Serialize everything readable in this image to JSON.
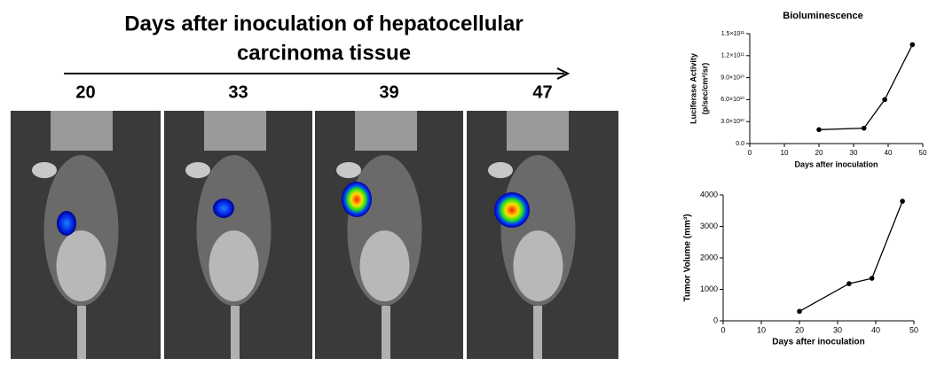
{
  "figure": {
    "title": [
      "Days after inoculation of hepatocellular",
      "carcinoma tissue"
    ],
    "days": [
      "20",
      "33",
      "39",
      "47"
    ]
  },
  "chart_data": [
    {
      "type": "line",
      "title": "Bioluminescence",
      "xlabel": "Days after inoculation",
      "ylabel": [
        "Luciferase Activity",
        "(p/sec/cm²/sr)"
      ],
      "x": [
        20,
        33,
        39,
        47
      ],
      "values": [
        19000000000,
        21000000000,
        60000000000,
        135000000000
      ],
      "color": "#000000",
      "xlim": [
        0,
        50
      ],
      "xticks": [
        0,
        10,
        20,
        30,
        40,
        50
      ],
      "ylim": [
        0,
        150000000000
      ],
      "yticks": [
        {
          "value": 0,
          "label": "0.0"
        },
        {
          "value": 30000000000,
          "label": "3.0×10¹⁰"
        },
        {
          "value": 60000000000,
          "label": "6.0×10¹⁰"
        },
        {
          "value": 90000000000,
          "label": "9.0×10¹⁰"
        },
        {
          "value": 120000000000,
          "label": "1.2×10¹¹"
        },
        {
          "value": 150000000000,
          "label": "1.5×10¹¹"
        }
      ]
    },
    {
      "type": "line",
      "xlabel": "Days after inoculation",
      "ylabel": "Tumor Volume (mm³)",
      "x": [
        20,
        33,
        39,
        47
      ],
      "values": [
        300,
        1180,
        1350,
        3800
      ],
      "color": "#000000",
      "xlim": [
        0,
        50
      ],
      "xticks": [
        0,
        10,
        20,
        30,
        40,
        50
      ],
      "ylim": [
        0,
        4000
      ],
      "yticks": [
        0,
        1000,
        2000,
        3000,
        4000
      ]
    }
  ]
}
